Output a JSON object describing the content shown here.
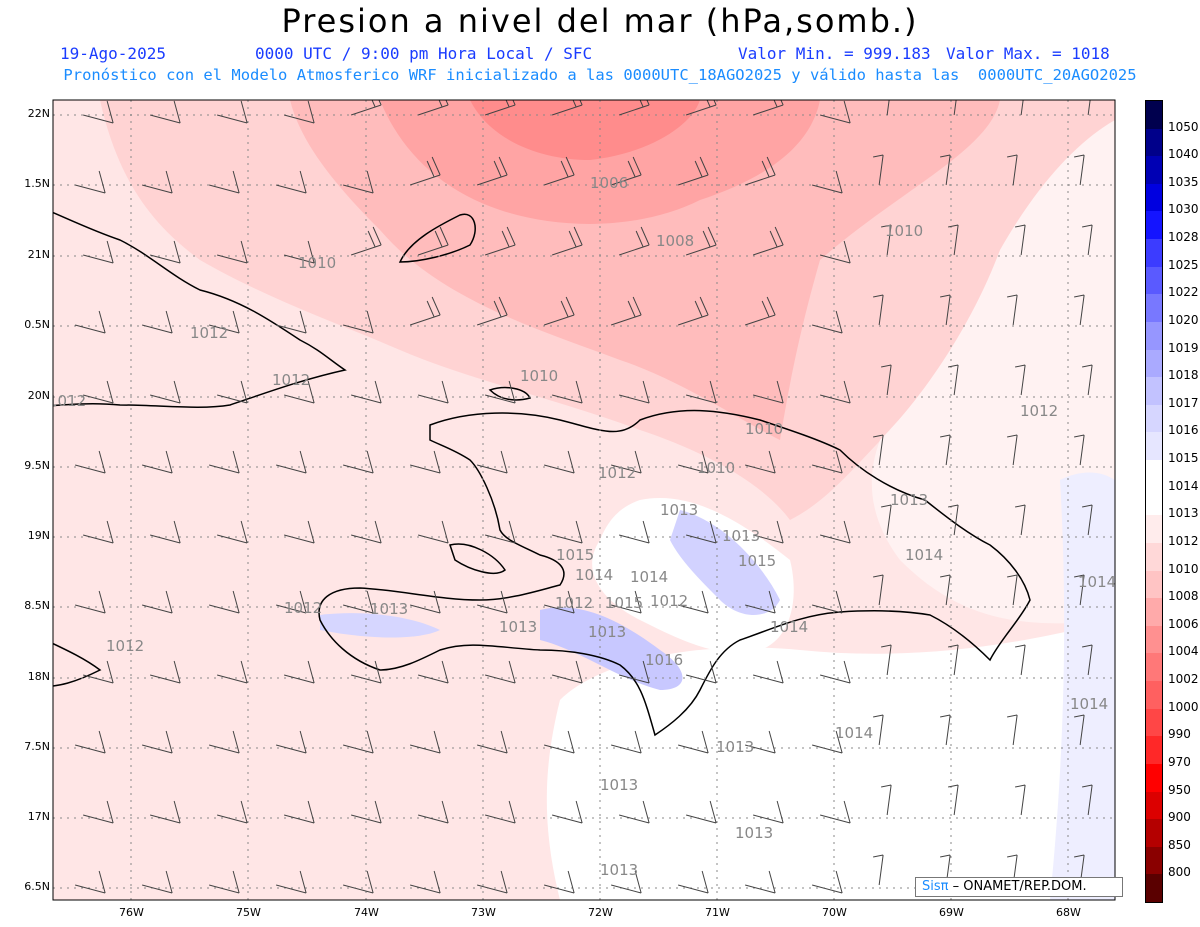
{
  "header": {
    "title": "Presion a nivel del mar (hPa,somb.)",
    "date": "19-Ago-2025",
    "time": "0000 UTC / 9:00 pm Hora Local / SFC",
    "min_value": "Valor Min. = 999.183",
    "max_value": "Valor Max. = 1018",
    "subtitle": "Pronóstico con el Modelo Atmosferico WRF inicializado a las 0000UTC_18AGO2025 y válido hasta las  0000UTC_20AGO2025"
  },
  "lat_labels": [
    "22N",
    "1.5N",
    "21N",
    "0.5N",
    "20N",
    "9.5N",
    "19N",
    "8.5N",
    "18N",
    "7.5N",
    "17N",
    "6.5N"
  ],
  "lon_labels": [
    "76W",
    "75W",
    "74W",
    "73W",
    "72W",
    "71W",
    "70W",
    "69W",
    "68W"
  ],
  "legend": {
    "labels": [
      "1050",
      "1040",
      "1035",
      "1030",
      "1028",
      "1025",
      "1022",
      "1020",
      "1019",
      "1018",
      "1017",
      "1016",
      "1015",
      "1014",
      "1013",
      "1012",
      "1010",
      "1008",
      "1006",
      "1004",
      "1002",
      "1000",
      "990",
      "970",
      "950",
      "900",
      "850",
      "800"
    ],
    "colors": [
      "#00004e",
      "#00008a",
      "#0000b4",
      "#0000e0",
      "#1414ff",
      "#3c3cff",
      "#5a5aff",
      "#7878ff",
      "#9696ff",
      "#aaaaff",
      "#c2c2ff",
      "#d6d6ff",
      "#e6e6ff",
      "#ffffff",
      "#ffffff",
      "#ffecec",
      "#ffd8d8",
      "#ffc4c4",
      "#ffaaaa",
      "#ff9090",
      "#ff7878",
      "#ff6060",
      "#ff4646",
      "#ff2828",
      "#ff0000",
      "#dc0000",
      "#b40000",
      "#8a0000",
      "#5a0000"
    ]
  },
  "contour_labels": [
    "1006",
    "1008",
    "1010",
    "1010",
    "1010",
    "1012",
    "1012",
    "1012",
    "1010",
    "1012",
    "1012",
    "1013",
    "1013",
    "1013",
    "1014",
    "1014",
    "1014",
    "1015",
    "1015",
    "1015",
    "1016",
    "1012",
    "1013",
    "1013",
    "1013",
    "1013",
    "1014",
    "1014",
    "1012",
    "1013",
    "1012",
    "1012",
    "1013",
    "1014",
    "1010",
    "1014",
    "1013"
  ],
  "credit": {
    "sis": "Sisπ",
    "rest": " – ONAMET/REP.DOM."
  },
  "colors": {
    "title_blue": "#1a3cff",
    "subtitle_blue": "#1a8cff"
  }
}
